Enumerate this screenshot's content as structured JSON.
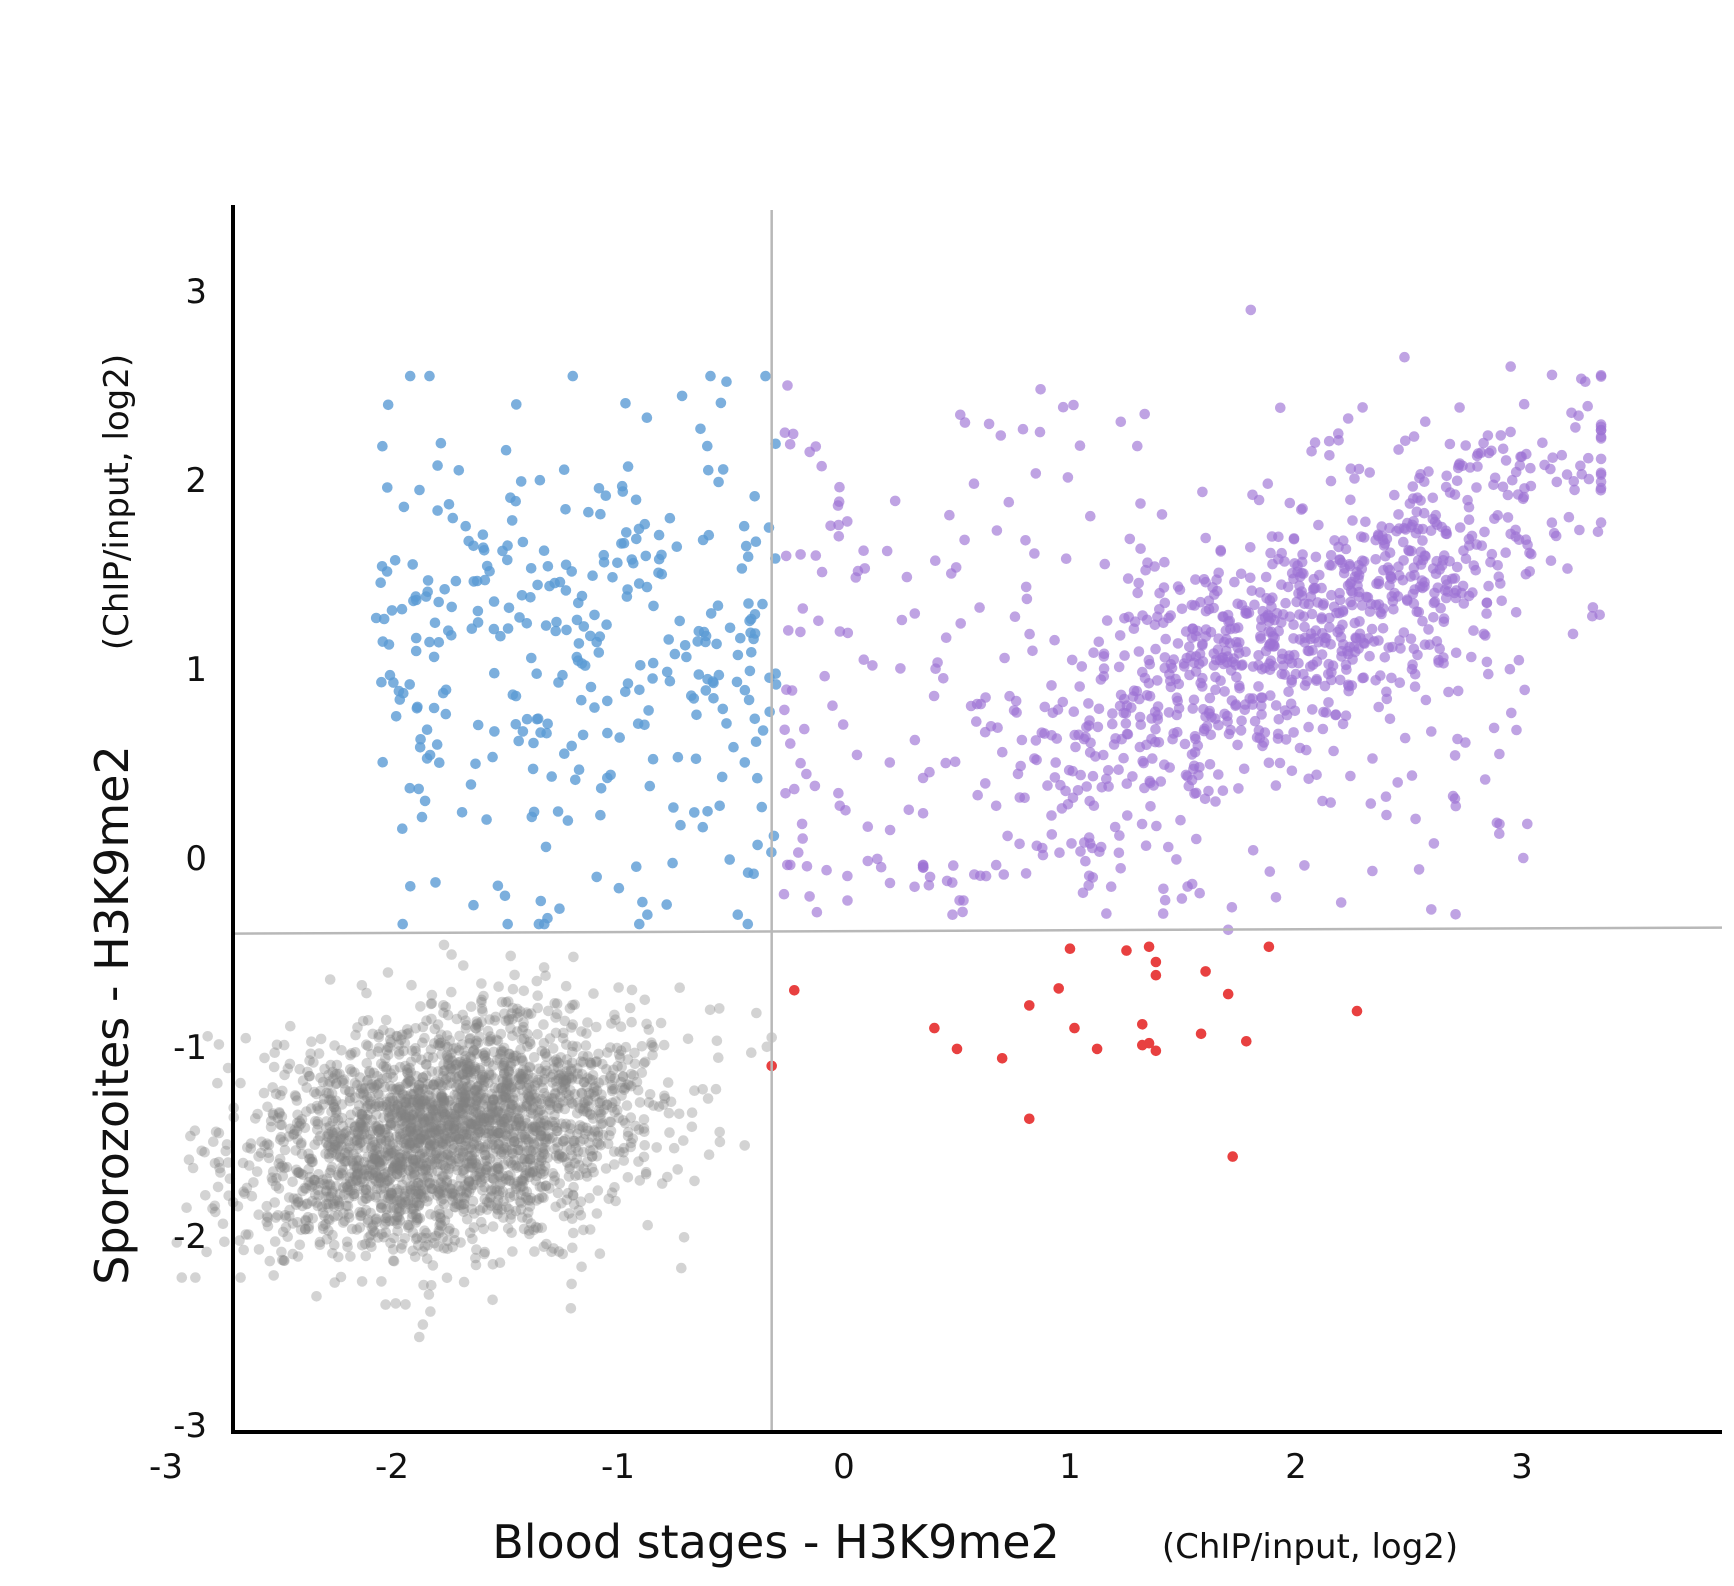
{
  "chart_data": {
    "type": "scatter",
    "title": "",
    "xlabel": "Blood stages - H3K9me2",
    "xlabel_unit": "(ChIP/input, log2)",
    "ylabel": "Sporozoites - H3K9me2",
    "ylabel_unit": "(ChIP/input, log2)",
    "xlim": [
      -3,
      3.5
    ],
    "ylim": [
      -3,
      3.5
    ],
    "x_ticks": [
      -3,
      -2,
      -1,
      0,
      1,
      2,
      3
    ],
    "y_ticks": [
      -3,
      -2,
      -1,
      0,
      1,
      2,
      3
    ],
    "x_tick_labels": [
      "-3",
      "-2",
      "-1",
      "0",
      "1",
      "2",
      "3"
    ],
    "y_tick_labels": [
      "-3",
      "-2",
      "-1",
      "0",
      "1",
      "2",
      "3"
    ],
    "grid": false,
    "threshold_x": -0.32,
    "threshold_y": -0.4,
    "series": [
      {
        "color": "#808080",
        "opacity": 0.35,
        "distribution": {
          "center": [
            -1.75,
            -1.45
          ],
          "spread": [
            0.42,
            0.32
          ],
          "correlation": 0.25,
          "count": 2600
        },
        "points": [
          [
            -2.93,
            -2.22
          ],
          [
            -2.87,
            -2.22
          ],
          [
            -2.88,
            -1.64
          ],
          [
            -2.67,
            -2.22
          ],
          [
            -1.83,
            -2.4
          ],
          [
            -1.86,
            -2.26
          ],
          [
            -0.72,
            -2.17
          ],
          [
            -0.32,
            -0.95
          ],
          [
            -0.41,
            -1.03
          ],
          [
            -0.55,
            -1.45
          ]
        ]
      },
      {
        "color": "#5b9bd5",
        "opacity": 0.8,
        "distribution": {
          "x_range": [
            -2.05,
            -0.3
          ],
          "y_range": [
            -0.35,
            2.55
          ],
          "count": 330
        },
        "points": [
          [
            -1.2,
            2.55
          ],
          [
            -0.52,
            2.52
          ],
          [
            -1.45,
            2.4
          ],
          [
            -2.07,
            1.27
          ],
          [
            -2.0,
            1.31
          ],
          [
            -1.8,
            0.6
          ],
          [
            -1.5,
            -0.2
          ],
          [
            -1.35,
            -0.35
          ],
          [
            -0.87,
            -0.3
          ],
          [
            -0.47,
            -0.3
          ]
        ]
      },
      {
        "color": "#9d72d4",
        "opacity": 0.65,
        "distribution": {
          "trend_start": [
            -0.25,
            0.0
          ],
          "trend_end": [
            3.35,
            2.5
          ],
          "count": 1150
        },
        "points": [
          [
            1.8,
            2.9
          ],
          [
            2.48,
            2.65
          ],
          [
            2.95,
            2.6
          ],
          [
            3.28,
            2.52
          ],
          [
            3.35,
            2.22
          ],
          [
            3.1,
            2.08
          ],
          [
            2.9,
            0.55
          ],
          [
            2.45,
            0.4
          ],
          [
            0.87,
            2.48
          ],
          [
            -0.25,
            2.5
          ],
          [
            0.48,
            -0.3
          ],
          [
            1.7,
            -0.38
          ]
        ]
      },
      {
        "color": "#e84040",
        "opacity": 1.0,
        "distribution": {
          "count": 32
        },
        "points": [
          [
            -0.22,
            -0.7
          ],
          [
            -0.32,
            -1.1
          ],
          [
            1.0,
            -0.48
          ],
          [
            1.25,
            -0.49
          ],
          [
            1.35,
            -0.47
          ],
          [
            1.38,
            -0.55
          ],
          [
            1.38,
            -0.62
          ],
          [
            1.88,
            -0.47
          ],
          [
            0.95,
            -0.69
          ],
          [
            1.6,
            -0.6
          ],
          [
            1.7,
            -0.72
          ],
          [
            0.82,
            -0.78
          ],
          [
            2.27,
            -0.81
          ],
          [
            0.4,
            -0.9
          ],
          [
            1.02,
            -0.9
          ],
          [
            1.32,
            -0.88
          ],
          [
            1.58,
            -0.93
          ],
          [
            1.78,
            -0.97
          ],
          [
            0.5,
            -1.01
          ],
          [
            0.7,
            -1.06
          ],
          [
            1.12,
            -1.01
          ],
          [
            1.32,
            -0.99
          ],
          [
            1.38,
            -1.02
          ],
          [
            1.35,
            -0.98
          ],
          [
            0.82,
            -1.38
          ],
          [
            1.72,
            -1.58
          ]
        ]
      }
    ]
  }
}
